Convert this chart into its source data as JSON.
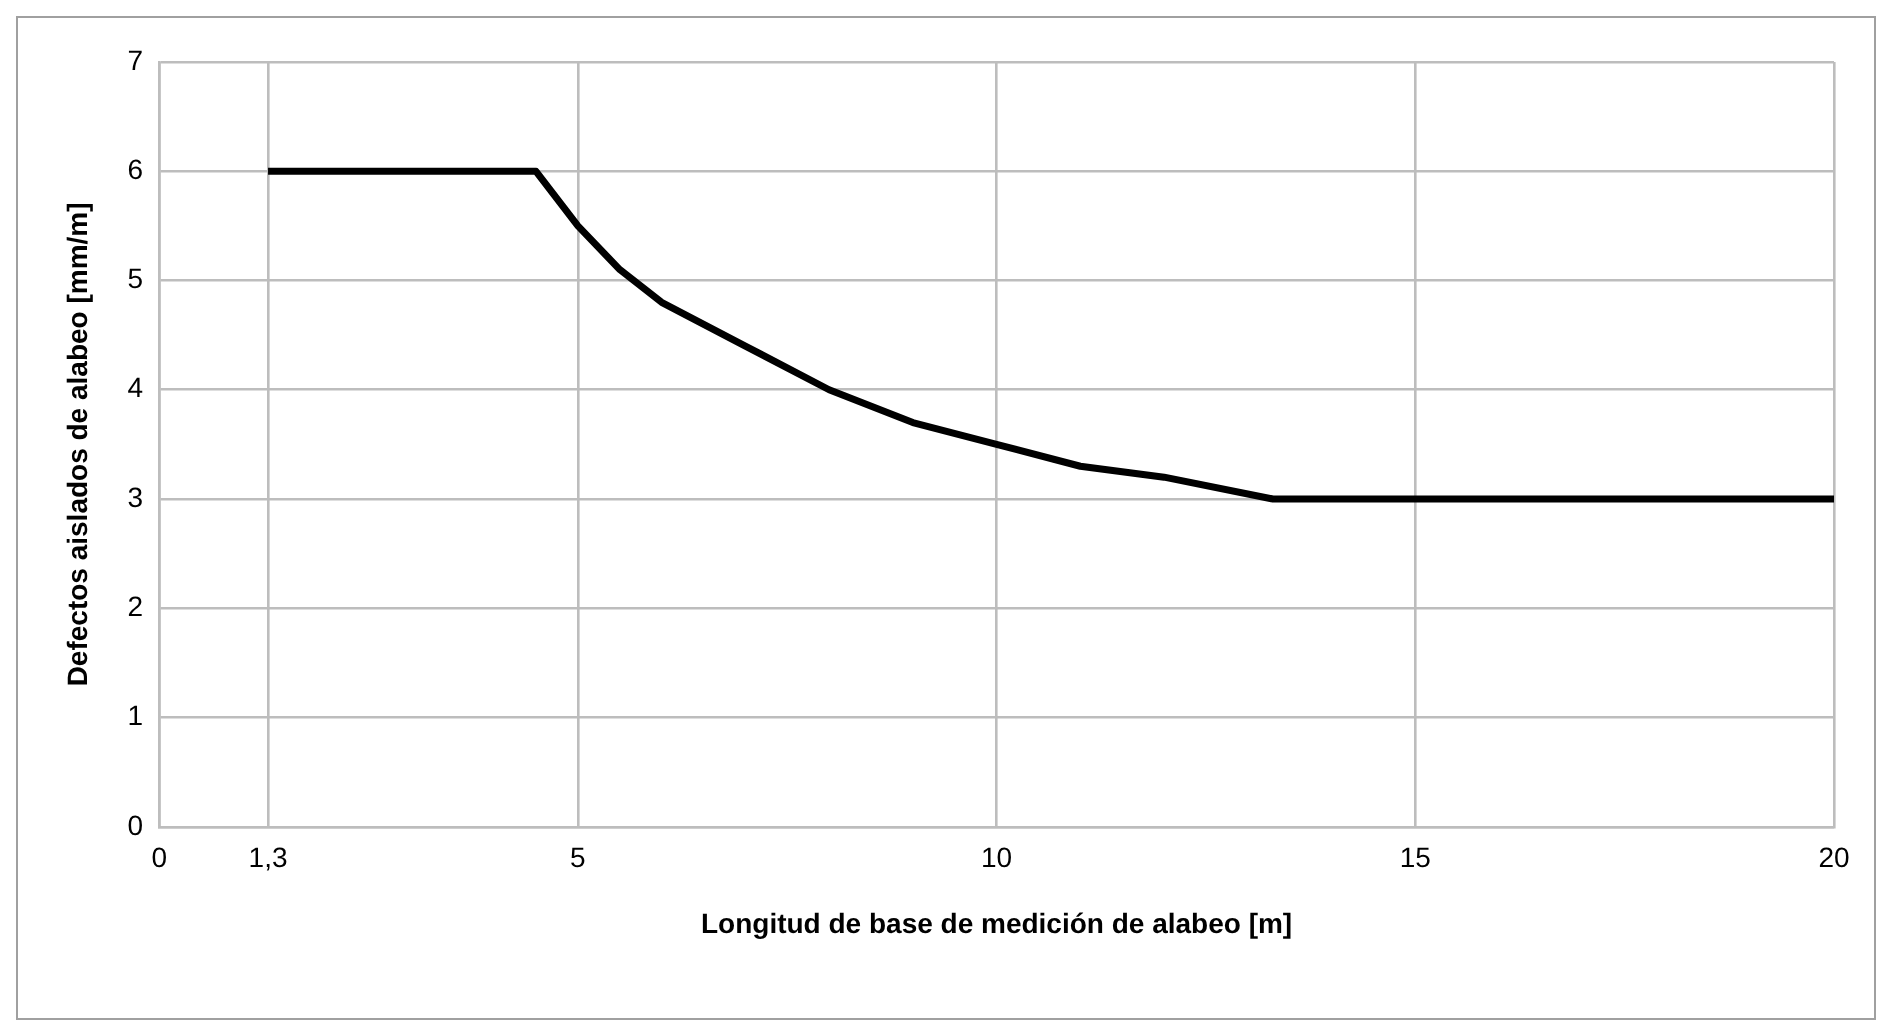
{
  "chart_data": {
    "type": "line",
    "xlabel": "Longitud de base de medición de alabeo [m]",
    "ylabel": "Defectos aislados de alabeo [mm/m]",
    "x": [
      1.3,
      4.5,
      5,
      5.5,
      6,
      7,
      8,
      9,
      10,
      11,
      12,
      13.3,
      20
    ],
    "series": [
      {
        "color": "#000000",
        "values": [
          6,
          6,
          5.5,
          5.1,
          4.8,
          4.4,
          4.0,
          3.7,
          3.5,
          3.3,
          3.2,
          3.0,
          3.0
        ]
      }
    ],
    "xlim": [
      0,
      20
    ],
    "xticks": [
      0,
      {
        "value": 1.3,
        "label": "1,3"
      },
      5,
      10,
      15,
      20
    ],
    "ylim": [
      0,
      7
    ],
    "yticks": [
      0,
      1,
      2,
      3,
      4,
      5,
      6,
      7
    ],
    "grid": true,
    "legend": false,
    "marker": "none",
    "line_style": "solid"
  }
}
